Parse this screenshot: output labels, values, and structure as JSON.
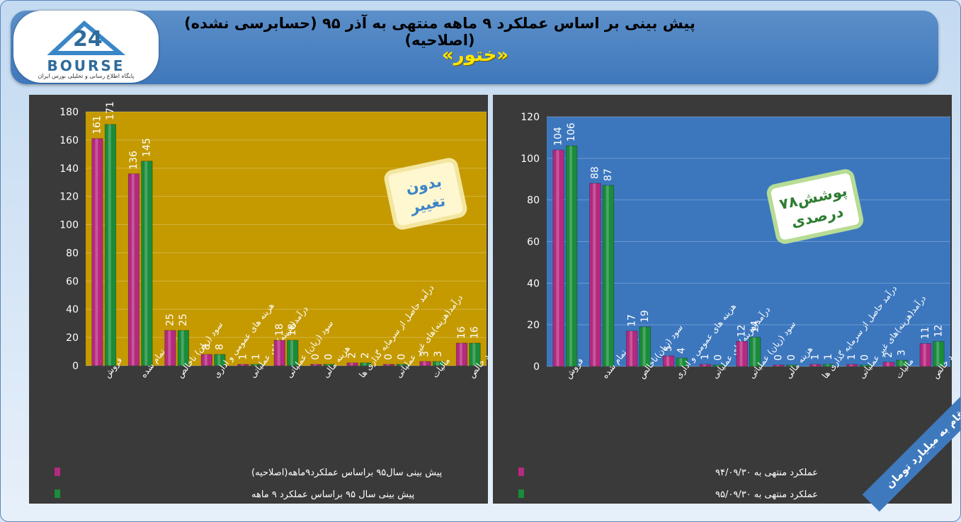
{
  "header": {
    "title": "پیش بینی بر اساس عملکرد ۹ ماهه منتهی به آذر ۹۵ (حسابرسی نشده)(اصلاحیه)",
    "subtitle": "«ختور»"
  },
  "logo": {
    "icon": "24-bourse-logo-icon",
    "word": "BOURSE",
    "tagline": "پایگاه اطلاع رسانی و تحلیلی بورس ایران"
  },
  "units_note": "ارقام به میلیارد تومان",
  "chart_data": [
    {
      "type": "bar",
      "background": "#c49a00",
      "series_colors": [
        "#b5297f",
        "#1a8c3a"
      ],
      "categories": [
        "فروش",
        "بهای تمام شده",
        "سود (زیان) ناخالص",
        "هزینه های عمومی و اداری",
        "درآمد(هزینه)های عملیاتی",
        "سود (زیان) عملیاتی",
        "هزینه مالی",
        "درآمد حاصل از سرمایه گذاری ها",
        "درآمد(هزینه)های غیر عملیاتی",
        "مالیات",
        "سود خالص"
      ],
      "series": [
        {
          "name": "پیش بینی سال۹۵ براساس عملکرد۹ماهه(اصلاحیه)",
          "values": [
            161,
            136,
            25,
            8,
            1,
            18,
            0,
            2,
            0,
            3,
            16
          ]
        },
        {
          "name": "پیش بینی سال ۹۵ براساس عملکرد ۹ ماهه",
          "values": [
            171,
            145,
            25,
            8,
            1,
            18,
            0,
            2,
            0,
            3,
            16
          ]
        }
      ],
      "ylim": [
        0,
        180
      ],
      "yticks": [
        0,
        20,
        40,
        60,
        80,
        100,
        120,
        140,
        160,
        180
      ],
      "annotation": "بدون تغییر",
      "annotation_lines": [
        "بدون",
        "تغییر"
      ],
      "legend": "bottom-left",
      "grid": true
    },
    {
      "type": "bar",
      "background": "#3c77be",
      "series_colors": [
        "#b5297f",
        "#1a8c3a"
      ],
      "categories": [
        "فروش",
        "بهای تمام شده",
        "سود (زیان)ناخالص",
        "هزینه های عمومی و اداری",
        "درآمد(هزینه)های عملیاتی",
        "سود (زیان) عملیاتی",
        "هزینه مالی",
        "درآمد حاصل از سرمایه گذاری ها",
        "درآمد(هزینه)های غیر عملیاتی",
        "مالیات",
        "سود خالص"
      ],
      "series": [
        {
          "name": "عملکرد منتهی به ۹۴/۰۹/۳۰",
          "values": [
            104,
            88,
            17,
            5,
            1,
            12,
            0,
            1,
            1,
            2,
            11
          ]
        },
        {
          "name": "عملکرد منتهی به ۹۵/۰۹/۳۰",
          "values": [
            106,
            87,
            19,
            4,
            0,
            14,
            0,
            1,
            0,
            3,
            12
          ]
        }
      ],
      "ylim": [
        0,
        120
      ],
      "yticks": [
        0,
        20,
        40,
        60,
        80,
        100,
        120
      ],
      "annotation": "پوشش۷۸ درصدی",
      "annotation_lines": [
        "پوشش۷۸",
        "درصدی"
      ],
      "legend": "bottom-left",
      "grid": true
    }
  ]
}
